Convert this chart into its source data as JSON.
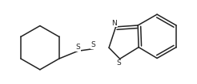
{
  "bg_color": "#ffffff",
  "line_color": "#222222",
  "line_width": 1.1,
  "dbo": 0.012,
  "font_size": 6.5,
  "label_N": "N",
  "label_S_bridge1": "S",
  "label_S_bridge2": "S",
  "label_S_ring": "S"
}
